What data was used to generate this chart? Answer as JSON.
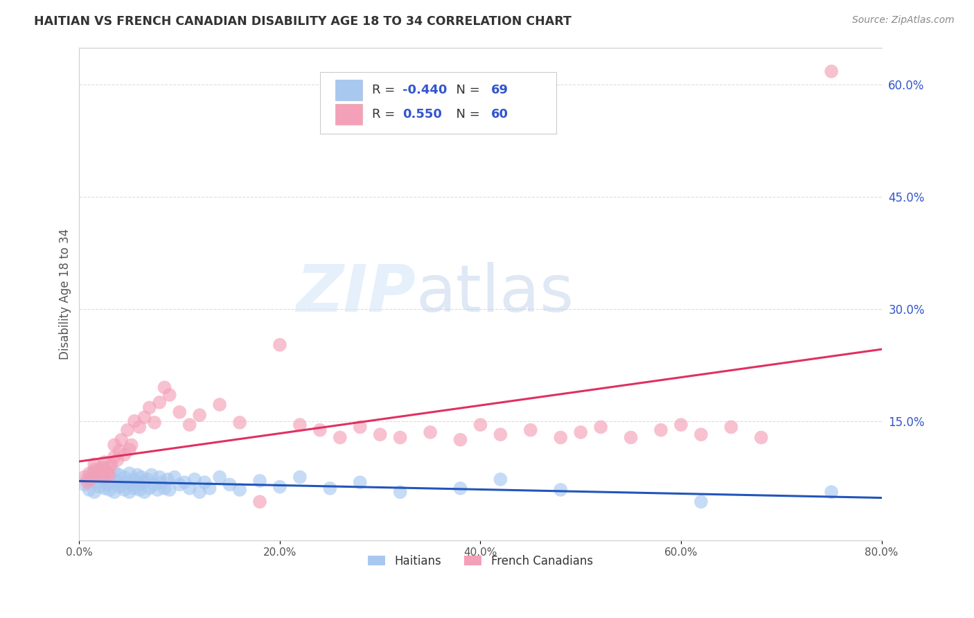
{
  "title": "HAITIAN VS FRENCH CANADIAN DISABILITY AGE 18 TO 34 CORRELATION CHART",
  "source": "Source: ZipAtlas.com",
  "ylabel": "Disability Age 18 to 34",
  "xlim": [
    0.0,
    0.8
  ],
  "ylim": [
    -0.01,
    0.65
  ],
  "xticks": [
    0.0,
    0.2,
    0.4,
    0.6,
    0.8
  ],
  "xticklabels": [
    "0.0%",
    "20.0%",
    "40.0%",
    "60.0%",
    "80.0%"
  ],
  "yticks_right": [
    0.15,
    0.3,
    0.45,
    0.6
  ],
  "ytick_right_labels": [
    "15.0%",
    "30.0%",
    "45.0%",
    "60.0%"
  ],
  "haitian_color": "#a8c8f0",
  "french_color": "#f4a0b8",
  "haitian_line_color": "#2255bb",
  "french_line_color": "#e03060",
  "haitian_R": -0.44,
  "haitian_N": 69,
  "french_R": 0.55,
  "french_N": 60,
  "watermark_zip": "ZIP",
  "watermark_atlas": "atlas",
  "background_color": "#ffffff",
  "grid_color": "#dddddd",
  "title_color": "#333333",
  "right_tick_color": "#3355cc",
  "legend_haitian_label": "Haitians",
  "legend_french_label": "French Canadians",
  "legend_text_color": "#3355cc",
  "haitian_x": [
    0.005,
    0.008,
    0.01,
    0.012,
    0.015,
    0.015,
    0.018,
    0.02,
    0.02,
    0.022,
    0.025,
    0.025,
    0.025,
    0.028,
    0.03,
    0.03,
    0.032,
    0.035,
    0.035,
    0.038,
    0.04,
    0.04,
    0.042,
    0.045,
    0.045,
    0.048,
    0.05,
    0.05,
    0.052,
    0.055,
    0.055,
    0.058,
    0.06,
    0.06,
    0.062,
    0.065,
    0.065,
    0.068,
    0.07,
    0.072,
    0.075,
    0.078,
    0.08,
    0.082,
    0.085,
    0.088,
    0.09,
    0.095,
    0.1,
    0.105,
    0.11,
    0.115,
    0.12,
    0.125,
    0.13,
    0.14,
    0.15,
    0.16,
    0.18,
    0.2,
    0.22,
    0.25,
    0.28,
    0.32,
    0.38,
    0.42,
    0.48,
    0.62,
    0.75
  ],
  "haitian_y": [
    0.065,
    0.072,
    0.058,
    0.078,
    0.055,
    0.082,
    0.068,
    0.062,
    0.075,
    0.085,
    0.06,
    0.072,
    0.088,
    0.065,
    0.058,
    0.075,
    0.068,
    0.055,
    0.082,
    0.07,
    0.062,
    0.078,
    0.065,
    0.058,
    0.075,
    0.068,
    0.055,
    0.08,
    0.065,
    0.072,
    0.06,
    0.078,
    0.065,
    0.058,
    0.075,
    0.068,
    0.055,
    0.072,
    0.06,
    0.078,
    0.065,
    0.058,
    0.075,
    0.068,
    0.06,
    0.072,
    0.058,
    0.075,
    0.065,
    0.068,
    0.06,
    0.072,
    0.055,
    0.068,
    0.06,
    0.075,
    0.065,
    0.058,
    0.07,
    0.062,
    0.075,
    0.06,
    0.068,
    0.055,
    0.06,
    0.072,
    0.058,
    0.042,
    0.055
  ],
  "french_x": [
    0.005,
    0.008,
    0.01,
    0.012,
    0.015,
    0.015,
    0.018,
    0.02,
    0.022,
    0.025,
    0.025,
    0.028,
    0.03,
    0.03,
    0.032,
    0.035,
    0.035,
    0.038,
    0.04,
    0.042,
    0.045,
    0.048,
    0.05,
    0.052,
    0.055,
    0.06,
    0.065,
    0.07,
    0.075,
    0.08,
    0.085,
    0.09,
    0.1,
    0.11,
    0.12,
    0.14,
    0.16,
    0.18,
    0.2,
    0.22,
    0.24,
    0.26,
    0.28,
    0.3,
    0.32,
    0.35,
    0.38,
    0.4,
    0.42,
    0.45,
    0.48,
    0.5,
    0.52,
    0.55,
    0.58,
    0.6,
    0.62,
    0.65,
    0.68,
    0.75
  ],
  "french_y": [
    0.075,
    0.068,
    0.08,
    0.072,
    0.085,
    0.092,
    0.078,
    0.082,
    0.088,
    0.075,
    0.095,
    0.082,
    0.078,
    0.088,
    0.092,
    0.102,
    0.118,
    0.098,
    0.11,
    0.125,
    0.105,
    0.138,
    0.112,
    0.118,
    0.15,
    0.142,
    0.155,
    0.168,
    0.148,
    0.175,
    0.195,
    0.185,
    0.162,
    0.145,
    0.158,
    0.172,
    0.148,
    0.042,
    0.252,
    0.145,
    0.138,
    0.128,
    0.142,
    0.132,
    0.128,
    0.135,
    0.125,
    0.145,
    0.132,
    0.138,
    0.128,
    0.135,
    0.142,
    0.128,
    0.138,
    0.145,
    0.132,
    0.142,
    0.128,
    0.618
  ]
}
